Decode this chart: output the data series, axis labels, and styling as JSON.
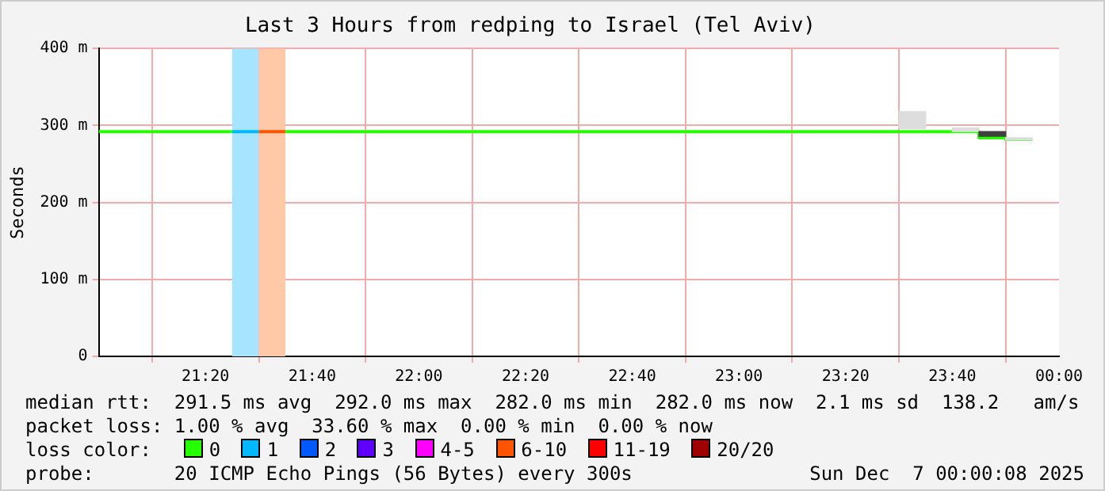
{
  "chart_data": {
    "type": "step",
    "title": "Last 3 Hours from redping to Israel (Tel Aviv)",
    "ylabel": "Seconds",
    "legend_title": "loss color:",
    "legend": "bottom",
    "grid": true,
    "xlim": [
      21,
      24
    ],
    "xticks": [
      {
        "value": 21.3333,
        "label": "21:20"
      },
      {
        "value": 21.6667,
        "label": "21:40"
      },
      {
        "value": 22,
        "label": "22:00"
      },
      {
        "value": 22.3333,
        "label": "22:20"
      },
      {
        "value": 22.6667,
        "label": "22:40"
      },
      {
        "value": 23,
        "label": "23:00"
      },
      {
        "value": 23.3333,
        "label": "23:20"
      },
      {
        "value": 23.6667,
        "label": "23:40"
      },
      {
        "value": 24,
        "label": "00:00"
      }
    ],
    "ylim": [
      0,
      400
    ],
    "yticks": [
      0,
      {
        "value": 100,
        "label": "100 m"
      },
      {
        "value": 200,
        "label": "200 m"
      },
      {
        "value": 300,
        "label": "300 m"
      },
      {
        "value": 400,
        "label": "400 m"
      }
    ],
    "bands": [
      {
        "axis": "x",
        "from": 21.4167,
        "to": 21.5,
        "color": "#a6e4ff"
      },
      {
        "axis": "x",
        "from": 21.5,
        "to": 21.5833,
        "color": "#ffc8a6"
      }
    ],
    "series": [
      {
        "type": "bar",
        "colors": [
          "#dddddd",
          "#dddddd",
          "#404040",
          "#dddddd"
        ],
        "x": [
          23.5417,
          23.7083,
          23.7917,
          23.875
        ],
        "base": [
          296,
          292,
          286,
          281
        ],
        "values": [
          22,
          5,
          6,
          3
        ]
      },
      {
        "name": "0",
        "color": "#26ff00",
        "x": [
          21,
          21.4167,
          21.5,
          21.5833,
          23.75,
          23.8333,
          23.9167
        ],
        "values": [
          292,
          292,
          null,
          292,
          284,
          282,
          282
        ]
      },
      {
        "name": "1",
        "color": "#00b8ff",
        "x": [
          21.4167,
          21.5
        ],
        "values": [
          292,
          292
        ]
      },
      {
        "name": "2",
        "color": "#0059ff"
      },
      {
        "name": "3",
        "color": "#5e00ff"
      },
      {
        "name": "4-5",
        "color": "#ff00fe"
      },
      {
        "name": "6-10",
        "color": "#ff5500",
        "x": [
          21.5,
          21.5833
        ],
        "values": [
          292,
          292
        ]
      },
      {
        "name": "11-19",
        "color": "#ff0000"
      },
      {
        "name": "20/20",
        "color": "#a10000"
      }
    ],
    "annotations": [
      "median rtt:  291.5 ms avg  292.0 ms max  282.0 ms min  282.0 ms now  2.1 ms sd  138.2   am/s",
      "packet loss: 1.00 % avg  33.60 % max  0.00 % min  0.00 % now",
      "probe:       20 ICMP Echo Pings (56 Bytes) every 300s",
      "Sun Dec  7 00:00:08 2025"
    ]
  }
}
